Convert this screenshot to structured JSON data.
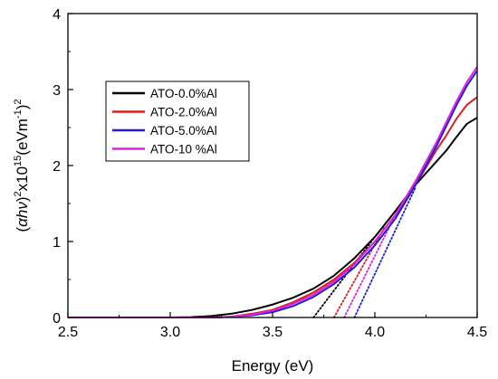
{
  "chart_data": {
    "type": "line",
    "xlabel": "Energy (eV)",
    "ylabel": {
      "alpha": "α",
      "h": "h",
      "nu": "ν",
      "exp2": "2",
      "times": "x10",
      "exp15": "15",
      "units_open": "(eVm",
      "exp_neg1": "-1",
      "units_close": ")",
      "exp_outer": "2",
      "paren_open": "(",
      "paren_close": ")"
    },
    "xlim": [
      2.5,
      4.5
    ],
    "ylim": [
      0,
      4
    ],
    "x_ticks": [
      2.5,
      3.0,
      3.5,
      4.0,
      4.5
    ],
    "x_tick_labels": [
      "2.5",
      "3.0",
      "3.5",
      "4.0",
      "4.5"
    ],
    "y_ticks": [
      0,
      1,
      2,
      3,
      4
    ],
    "y_tick_labels": [
      "0",
      "1",
      "2",
      "3",
      "4"
    ],
    "grid": false,
    "legend_position": "upper-left",
    "series": [
      {
        "name": "ATO-0.0%Al",
        "color": "#000000",
        "x": [
          2.5,
          3.0,
          3.1,
          3.2,
          3.3,
          3.4,
          3.5,
          3.6,
          3.7,
          3.8,
          3.9,
          4.0,
          4.1,
          4.2,
          4.3,
          4.35,
          4.4,
          4.45,
          4.5
        ],
        "y": [
          0.0,
          0.0,
          0.005,
          0.02,
          0.05,
          0.1,
          0.17,
          0.26,
          0.38,
          0.55,
          0.78,
          1.06,
          1.4,
          1.75,
          2.05,
          2.2,
          2.38,
          2.55,
          2.63
        ],
        "tangent": {
          "x": [
            3.7,
            4.0
          ],
          "y": [
            0.0,
            1.06
          ]
        }
      },
      {
        "name": "ATO-2.0%Al",
        "color": "#d42020",
        "x": [
          2.5,
          3.2,
          3.3,
          3.4,
          3.5,
          3.6,
          3.7,
          3.8,
          3.9,
          4.0,
          4.1,
          4.2,
          4.3,
          4.35,
          4.4,
          4.45,
          4.5
        ],
        "y": [
          0.0,
          0.0,
          0.01,
          0.05,
          0.1,
          0.2,
          0.33,
          0.5,
          0.72,
          1.0,
          1.35,
          1.75,
          2.2,
          2.4,
          2.62,
          2.8,
          2.9
        ],
        "tangent": {
          "x": [
            3.8,
            4.05
          ],
          "y": [
            0.0,
            1.2
          ]
        }
      },
      {
        "name": "ATO-5.0%Al",
        "color": "#1e1ed2",
        "x": [
          2.5,
          3.2,
          3.3,
          3.4,
          3.5,
          3.6,
          3.7,
          3.8,
          3.9,
          4.0,
          4.1,
          4.2,
          4.3,
          4.4,
          4.45,
          4.5
        ],
        "y": [
          0.0,
          0.0,
          0.01,
          0.03,
          0.07,
          0.15,
          0.27,
          0.44,
          0.66,
          0.95,
          1.3,
          1.75,
          2.25,
          2.8,
          3.05,
          3.25
        ],
        "tangent": {
          "x": [
            3.9,
            4.2
          ],
          "y": [
            0.0,
            1.72
          ]
        }
      },
      {
        "name": "ATO-10 %Al",
        "color": "#e020e0",
        "x": [
          2.5,
          3.2,
          3.3,
          3.4,
          3.5,
          3.6,
          3.7,
          3.8,
          3.9,
          4.0,
          4.1,
          4.2,
          4.3,
          4.4,
          4.45,
          4.5
        ],
        "y": [
          0.0,
          0.0,
          0.01,
          0.04,
          0.09,
          0.18,
          0.3,
          0.47,
          0.7,
          1.0,
          1.35,
          1.8,
          2.3,
          2.85,
          3.1,
          3.3
        ],
        "tangent": {
          "x": [
            3.85,
            4.1
          ],
          "y": [
            0.0,
            1.35
          ]
        }
      }
    ]
  }
}
